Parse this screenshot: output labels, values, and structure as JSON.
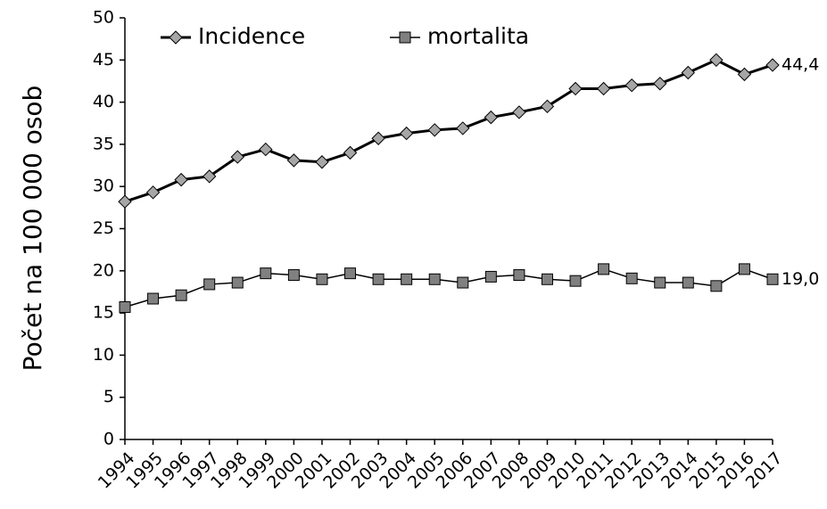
{
  "chart_data": {
    "type": "line",
    "y_label": "Počet na 100 000 osob",
    "categories": [
      "1994",
      "1995",
      "1996",
      "1997",
      "1998",
      "1999",
      "2000",
      "2001",
      "2002",
      "2003",
      "2004",
      "2005",
      "2006",
      "2007",
      "2008",
      "2009",
      "2010",
      "2011",
      "2012",
      "2013",
      "2014",
      "2015",
      "2016",
      "2017"
    ],
    "series": [
      {
        "name": "Incidence",
        "color": "#000000",
        "marker": "diamond",
        "marker_color": "#a6a6a6",
        "values": [
          28.2,
          29.3,
          30.8,
          31.2,
          33.5,
          34.4,
          33.1,
          32.9,
          34.0,
          35.7,
          36.3,
          36.7,
          36.9,
          38.2,
          38.8,
          39.5,
          41.6,
          41.6,
          42.0,
          42.2,
          43.5,
          45.0,
          43.3,
          44.4
        ],
        "value_labels": [
          null,
          null,
          null,
          null,
          null,
          null,
          null,
          null,
          null,
          null,
          null,
          null,
          null,
          null,
          null,
          null,
          null,
          null,
          null,
          null,
          null,
          null,
          null,
          "44,4"
        ]
      },
      {
        "name": "mortalita",
        "color": "#000000",
        "marker": "square",
        "marker_color": "#808080",
        "values": [
          15.7,
          16.7,
          17.1,
          18.4,
          18.6,
          19.7,
          19.5,
          19.0,
          19.7,
          19.0,
          19.0,
          19.0,
          18.6,
          19.3,
          19.5,
          19.0,
          18.8,
          20.2,
          19.1,
          18.6,
          18.6,
          18.2,
          20.2,
          19.0
        ],
        "value_labels": [
          null,
          null,
          null,
          null,
          null,
          null,
          null,
          null,
          null,
          null,
          null,
          null,
          null,
          null,
          null,
          null,
          null,
          null,
          null,
          null,
          null,
          null,
          null,
          "19,0"
        ]
      }
    ],
    "ylim": [
      0,
      50
    ],
    "yticks": [
      0,
      5,
      10,
      15,
      20,
      25,
      30,
      35,
      40,
      45,
      50
    ],
    "grid": false,
    "legend": "top"
  }
}
